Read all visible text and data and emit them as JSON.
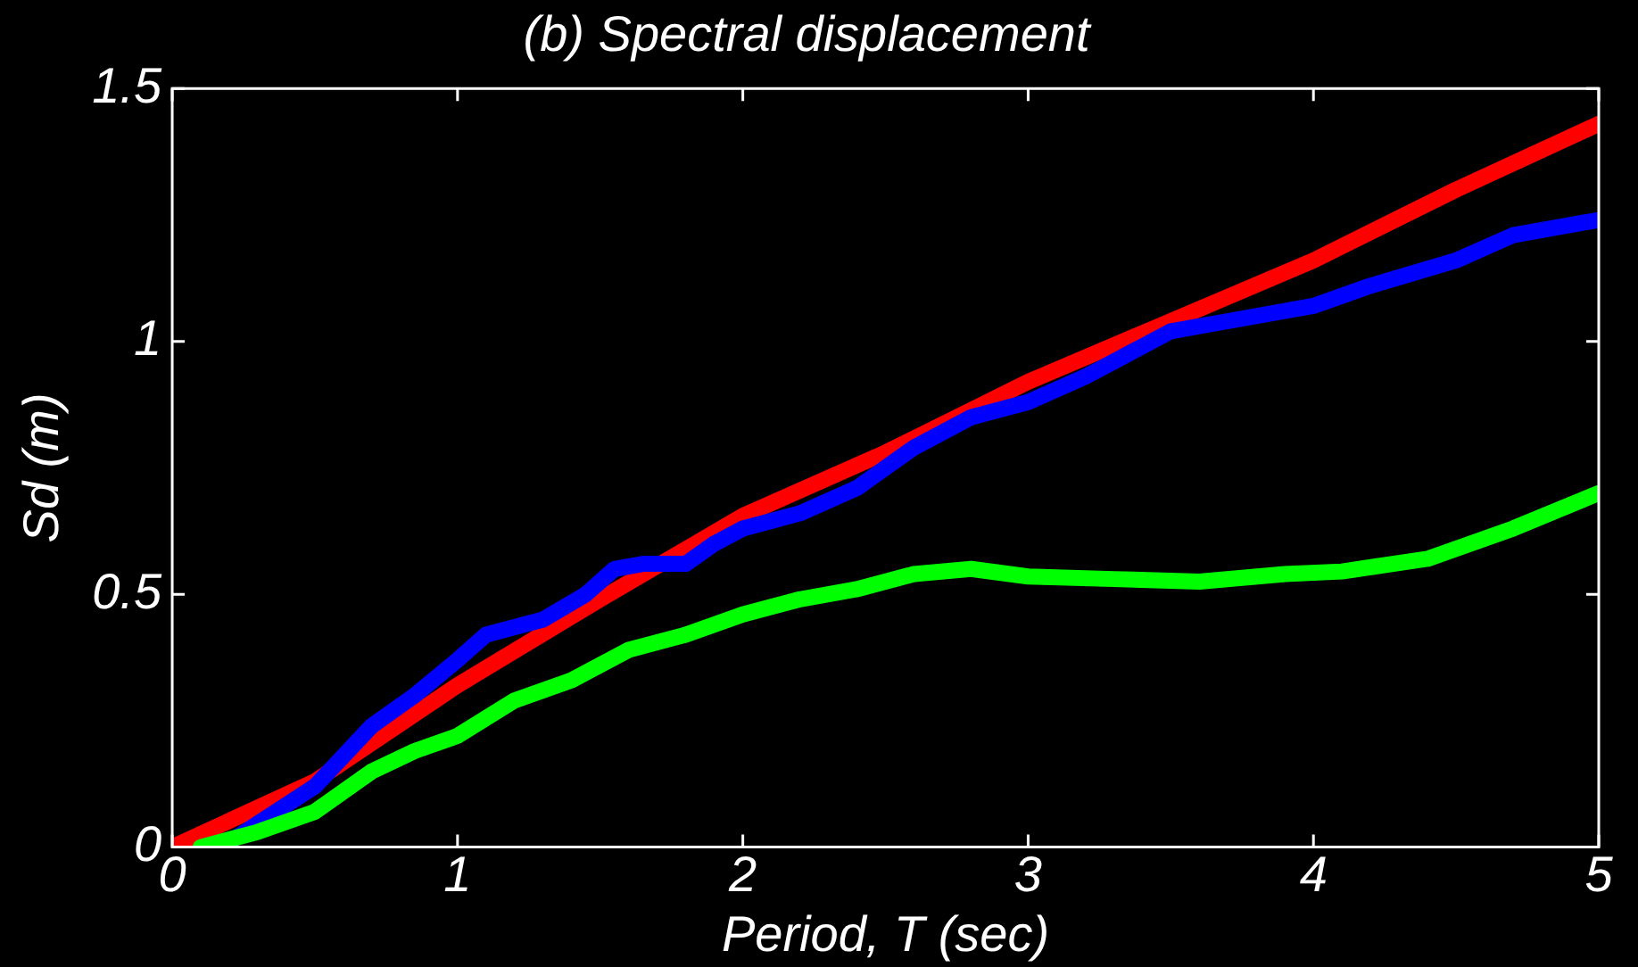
{
  "chart_data": {
    "type": "line",
    "title": "(b) Spectral displacement",
    "xlabel": "Period, T (sec)",
    "ylabel": "Sd (m)",
    "xlim": [
      0,
      5
    ],
    "ylim": [
      0,
      1.5
    ],
    "xticks": [
      0,
      1,
      2,
      3,
      4,
      5
    ],
    "yticks": [
      0,
      0.5,
      1,
      1.5
    ],
    "grid": false,
    "legend": false,
    "marker": "none",
    "line_style": "solid",
    "series": [
      {
        "color": "#00ff00",
        "x": [
          0.1,
          0.3,
          0.5,
          0.7,
          0.85,
          1.0,
          1.2,
          1.4,
          1.6,
          1.8,
          2.0,
          2.2,
          2.4,
          2.6,
          2.8,
          3.0,
          3.3,
          3.6,
          3.9,
          4.1,
          4.4,
          4.7,
          5.0
        ],
        "values": [
          0,
          0.03,
          0.07,
          0.15,
          0.19,
          0.22,
          0.29,
          0.33,
          0.39,
          0.42,
          0.46,
          0.49,
          0.51,
          0.54,
          0.55,
          0.535,
          0.53,
          0.525,
          0.54,
          0.545,
          0.57,
          0.63,
          0.7
        ]
      },
      {
        "color": "#0000ff",
        "x": [
          0.2,
          0.5,
          0.7,
          0.85,
          1.0,
          1.1,
          1.3,
          1.45,
          1.55,
          1.65,
          1.8,
          1.9,
          2.0,
          2.2,
          2.4,
          2.6,
          2.8,
          3.0,
          3.2,
          3.5,
          3.7,
          4.0,
          4.2,
          4.5,
          4.7,
          5.0
        ],
        "values": [
          0.01,
          0.12,
          0.24,
          0.3,
          0.37,
          0.42,
          0.45,
          0.5,
          0.55,
          0.56,
          0.56,
          0.6,
          0.63,
          0.66,
          0.71,
          0.79,
          0.85,
          0.88,
          0.93,
          1.02,
          1.04,
          1.07,
          1.11,
          1.16,
          1.21,
          1.24
        ]
      },
      {
        "color": "#ff0000",
        "x": [
          0,
          0.5,
          1,
          1.5,
          2,
          2.5,
          3,
          3.5,
          4,
          4.5,
          5
        ],
        "values": [
          0,
          0.13,
          0.32,
          0.49,
          0.655,
          0.78,
          0.92,
          1.04,
          1.16,
          1.3,
          1.43
        ]
      }
    ]
  }
}
